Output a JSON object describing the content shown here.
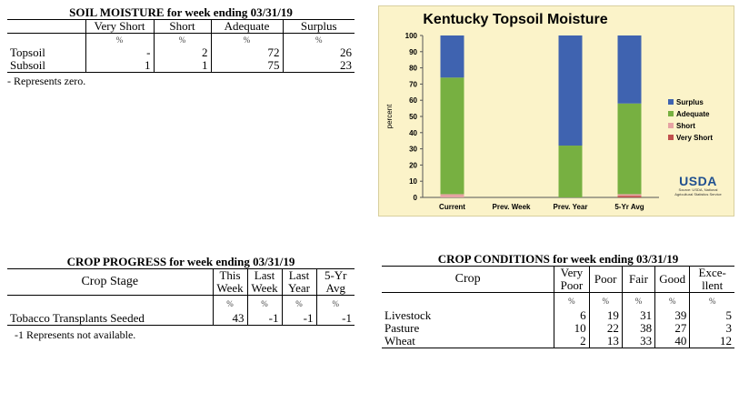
{
  "soil": {
    "title": "SOIL MOISTURE for week ending 03/31/19",
    "headers": [
      "Very Short",
      "Short",
      "Adequate",
      "Surplus"
    ],
    "unit": "%",
    "rows": [
      {
        "label": "Topsoil",
        "values": [
          "-",
          "2",
          "72",
          "26"
        ]
      },
      {
        "label": "Subsoil",
        "values": [
          "1",
          "1",
          "75",
          "23"
        ]
      }
    ],
    "note": "- Represents zero."
  },
  "progress": {
    "title": "CROP PROGRESS for week ending 03/31/19",
    "stage_header": "Crop Stage",
    "headers": [
      [
        "This",
        "Week"
      ],
      [
        "Last",
        "Week"
      ],
      [
        "Last",
        "Year"
      ],
      [
        "5-Yr",
        "Avg"
      ]
    ],
    "unit": "%",
    "rows": [
      {
        "label": "Tobacco Transplants Seeded",
        "values": [
          "43",
          "-1",
          "-1",
          "-1"
        ]
      }
    ],
    "note": "-1 Represents not available."
  },
  "conditions": {
    "title": "CROP CONDITIONS for week ending 03/31/19",
    "crop_header": "Crop",
    "headers": [
      [
        "Very",
        "Poor"
      ],
      [
        "Poor",
        ""
      ],
      [
        "Fair",
        ""
      ],
      [
        "Good",
        ""
      ],
      [
        "Exce-",
        "llent"
      ]
    ],
    "unit": "%",
    "rows": [
      {
        "label": "Livestock",
        "values": [
          "6",
          "19",
          "31",
          "39",
          "5"
        ]
      },
      {
        "label": "Pasture",
        "values": [
          "10",
          "22",
          "38",
          "27",
          "3"
        ]
      },
      {
        "label": "Wheat",
        "values": [
          "2",
          "13",
          "33",
          "40",
          "12"
        ]
      }
    ]
  },
  "logo": {
    "text": "USDA",
    "source": "Source: USDA, National Agricultural Statistics Service"
  },
  "chart_data": {
    "type": "bar",
    "stacked": true,
    "title": "Kentucky Topsoil Moisture",
    "ylabel": "percent",
    "ylim": [
      0,
      100
    ],
    "yticks": [
      0,
      10,
      20,
      30,
      40,
      50,
      60,
      70,
      80,
      90,
      100
    ],
    "grid": false,
    "legend": "right",
    "categories": [
      "Current",
      "Prev. Week",
      "Prev. Year",
      "5-Yr Avg"
    ],
    "series": [
      {
        "name": "Very Short",
        "color": "#c0504d",
        "values": [
          0,
          0,
          0,
          1
        ]
      },
      {
        "name": "Short",
        "color": "#e6a3a3",
        "values": [
          2,
          0,
          0,
          1
        ]
      },
      {
        "name": "Adequate",
        "color": "#77b041",
        "values": [
          72,
          0,
          32,
          56
        ]
      },
      {
        "name": "Surplus",
        "color": "#3f63b0",
        "values": [
          26,
          0,
          68,
          42
        ]
      }
    ]
  }
}
